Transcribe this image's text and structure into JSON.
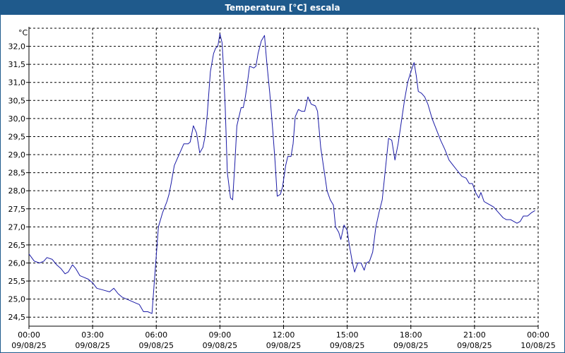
{
  "window": {
    "title": "Temperatura [°C] escala"
  },
  "chart_data": {
    "type": "line",
    "title": "Temperatura [°C] escala",
    "ylabel": "°C",
    "xlabel": "",
    "ylim": [
      24.25,
      32.5
    ],
    "yticks": [
      "24,5",
      "25,0",
      "25,5",
      "26,0",
      "26,5",
      "27,0",
      "27,5",
      "28,0",
      "28,5",
      "29,0",
      "29,5",
      "30,0",
      "30,5",
      "31,0",
      "31,5",
      "32,0"
    ],
    "ytick_values": [
      24.5,
      25.0,
      25.5,
      26.0,
      26.5,
      27.0,
      27.5,
      28.0,
      28.5,
      29.0,
      29.5,
      30.0,
      30.5,
      31.0,
      31.5,
      32.0
    ],
    "xticks": [
      {
        "time": "00:00",
        "date": "09/08/25",
        "hour": 0
      },
      {
        "time": "03:00",
        "date": "09/08/25",
        "hour": 3
      },
      {
        "time": "06:00",
        "date": "09/08/25",
        "hour": 6
      },
      {
        "time": "09:00",
        "date": "09/08/25",
        "hour": 9
      },
      {
        "time": "12:00",
        "date": "09/08/25",
        "hour": 12
      },
      {
        "time": "15:00",
        "date": "09/08/25",
        "hour": 15
      },
      {
        "time": "18:00",
        "date": "09/08/25",
        "hour": 18
      },
      {
        "time": "21:00",
        "date": "09/08/25",
        "hour": 21
      },
      {
        "time": "00:00",
        "date": "10/08/25",
        "hour": 24
      }
    ],
    "xlim_hours": [
      0,
      24
    ],
    "grid": true,
    "line_color": "#1a1aa6",
    "series": [
      {
        "points": [
          [
            0.0,
            26.25
          ],
          [
            0.25,
            26.05
          ],
          [
            0.5,
            26.0
          ],
          [
            0.7,
            26.05
          ],
          [
            0.85,
            26.15
          ],
          [
            1.1,
            26.1
          ],
          [
            1.3,
            25.95
          ],
          [
            1.5,
            25.85
          ],
          [
            1.7,
            25.7
          ],
          [
            1.85,
            25.75
          ],
          [
            2.05,
            25.95
          ],
          [
            2.2,
            25.85
          ],
          [
            2.4,
            25.65
          ],
          [
            2.6,
            25.6
          ],
          [
            2.8,
            25.55
          ],
          [
            3.0,
            25.45
          ],
          [
            3.2,
            25.3
          ],
          [
            3.5,
            25.25
          ],
          [
            3.8,
            25.2
          ],
          [
            4.0,
            25.3
          ],
          [
            4.2,
            25.15
          ],
          [
            4.4,
            25.05
          ],
          [
            4.6,
            25.0
          ],
          [
            4.8,
            24.95
          ],
          [
            5.0,
            24.9
          ],
          [
            5.2,
            24.85
          ],
          [
            5.4,
            24.65
          ],
          [
            5.6,
            24.65
          ],
          [
            5.8,
            24.6
          ],
          [
            5.9,
            25.4
          ],
          [
            6.1,
            27.0
          ],
          [
            6.3,
            27.4
          ],
          [
            6.5,
            27.7
          ],
          [
            6.6,
            27.9
          ],
          [
            6.7,
            28.2
          ],
          [
            6.85,
            28.7
          ],
          [
            7.0,
            28.9
          ],
          [
            7.15,
            29.1
          ],
          [
            7.3,
            29.3
          ],
          [
            7.5,
            29.3
          ],
          [
            7.6,
            29.35
          ],
          [
            7.75,
            29.8
          ],
          [
            7.9,
            29.6
          ],
          [
            8.05,
            29.05
          ],
          [
            8.2,
            29.2
          ],
          [
            8.3,
            29.5
          ],
          [
            8.4,
            30.1
          ],
          [
            8.55,
            31.3
          ],
          [
            8.7,
            31.8
          ],
          [
            8.8,
            31.95
          ],
          [
            8.9,
            32.0
          ],
          [
            9.0,
            32.35
          ],
          [
            9.1,
            32.1
          ],
          [
            9.15,
            31.6
          ],
          [
            9.25,
            30.3
          ],
          [
            9.35,
            28.5
          ],
          [
            9.5,
            27.8
          ],
          [
            9.6,
            27.75
          ],
          [
            9.7,
            28.7
          ],
          [
            9.8,
            29.8
          ],
          [
            10.0,
            30.3
          ],
          [
            10.1,
            30.3
          ],
          [
            10.2,
            30.6
          ],
          [
            10.3,
            31.0
          ],
          [
            10.4,
            31.45
          ],
          [
            10.6,
            31.4
          ],
          [
            10.7,
            31.45
          ],
          [
            10.8,
            31.8
          ],
          [
            10.95,
            32.15
          ],
          [
            11.1,
            32.3
          ],
          [
            11.2,
            31.6
          ],
          [
            11.35,
            30.7
          ],
          [
            11.5,
            29.6
          ],
          [
            11.6,
            28.8
          ],
          [
            11.7,
            27.85
          ],
          [
            11.85,
            27.9
          ],
          [
            11.95,
            28.1
          ],
          [
            12.1,
            28.7
          ],
          [
            12.2,
            28.95
          ],
          [
            12.35,
            28.95
          ],
          [
            12.45,
            29.3
          ],
          [
            12.55,
            30.05
          ],
          [
            12.7,
            30.25
          ],
          [
            12.85,
            30.2
          ],
          [
            13.0,
            30.2
          ],
          [
            13.15,
            30.6
          ],
          [
            13.3,
            30.4
          ],
          [
            13.5,
            30.35
          ],
          [
            13.6,
            30.2
          ],
          [
            13.75,
            29.2
          ],
          [
            13.9,
            28.6
          ],
          [
            14.05,
            28.0
          ],
          [
            14.2,
            27.75
          ],
          [
            14.35,
            27.6
          ],
          [
            14.45,
            27.0
          ],
          [
            14.6,
            26.85
          ],
          [
            14.7,
            26.65
          ],
          [
            14.85,
            27.05
          ],
          [
            15.0,
            26.9
          ],
          [
            15.1,
            26.5
          ],
          [
            15.25,
            26.0
          ],
          [
            15.35,
            25.75
          ],
          [
            15.5,
            26.0
          ],
          [
            15.65,
            26.0
          ],
          [
            15.8,
            25.8
          ],
          [
            15.9,
            26.0
          ],
          [
            16.05,
            26.05
          ],
          [
            16.2,
            26.3
          ],
          [
            16.35,
            27.0
          ],
          [
            16.5,
            27.4
          ],
          [
            16.65,
            27.75
          ],
          [
            16.8,
            28.6
          ],
          [
            16.95,
            29.45
          ],
          [
            17.1,
            29.4
          ],
          [
            17.25,
            28.85
          ],
          [
            17.4,
            29.3
          ],
          [
            17.55,
            29.9
          ],
          [
            17.7,
            30.5
          ],
          [
            17.85,
            31.0
          ],
          [
            18.0,
            31.3
          ],
          [
            18.15,
            31.55
          ],
          [
            18.25,
            31.2
          ],
          [
            18.35,
            30.75
          ],
          [
            18.5,
            30.7
          ],
          [
            18.65,
            30.6
          ],
          [
            18.8,
            30.4
          ],
          [
            19.0,
            30.0
          ],
          [
            19.2,
            29.7
          ],
          [
            19.4,
            29.4
          ],
          [
            19.6,
            29.15
          ],
          [
            19.8,
            28.85
          ],
          [
            20.0,
            28.7
          ],
          [
            20.2,
            28.55
          ],
          [
            20.4,
            28.4
          ],
          [
            20.6,
            28.35
          ],
          [
            20.75,
            28.2
          ],
          [
            20.9,
            28.2
          ],
          [
            21.05,
            27.95
          ],
          [
            21.2,
            27.8
          ],
          [
            21.3,
            27.95
          ],
          [
            21.45,
            27.7
          ],
          [
            21.6,
            27.65
          ],
          [
            21.75,
            27.6
          ],
          [
            21.9,
            27.55
          ],
          [
            22.05,
            27.45
          ],
          [
            22.2,
            27.35
          ],
          [
            22.35,
            27.25
          ],
          [
            22.5,
            27.2
          ],
          [
            22.7,
            27.2
          ],
          [
            22.85,
            27.15
          ],
          [
            23.0,
            27.1
          ],
          [
            23.15,
            27.15
          ],
          [
            23.3,
            27.3
          ],
          [
            23.5,
            27.3
          ],
          [
            23.7,
            27.4
          ],
          [
            23.85,
            27.45
          ]
        ]
      }
    ]
  }
}
